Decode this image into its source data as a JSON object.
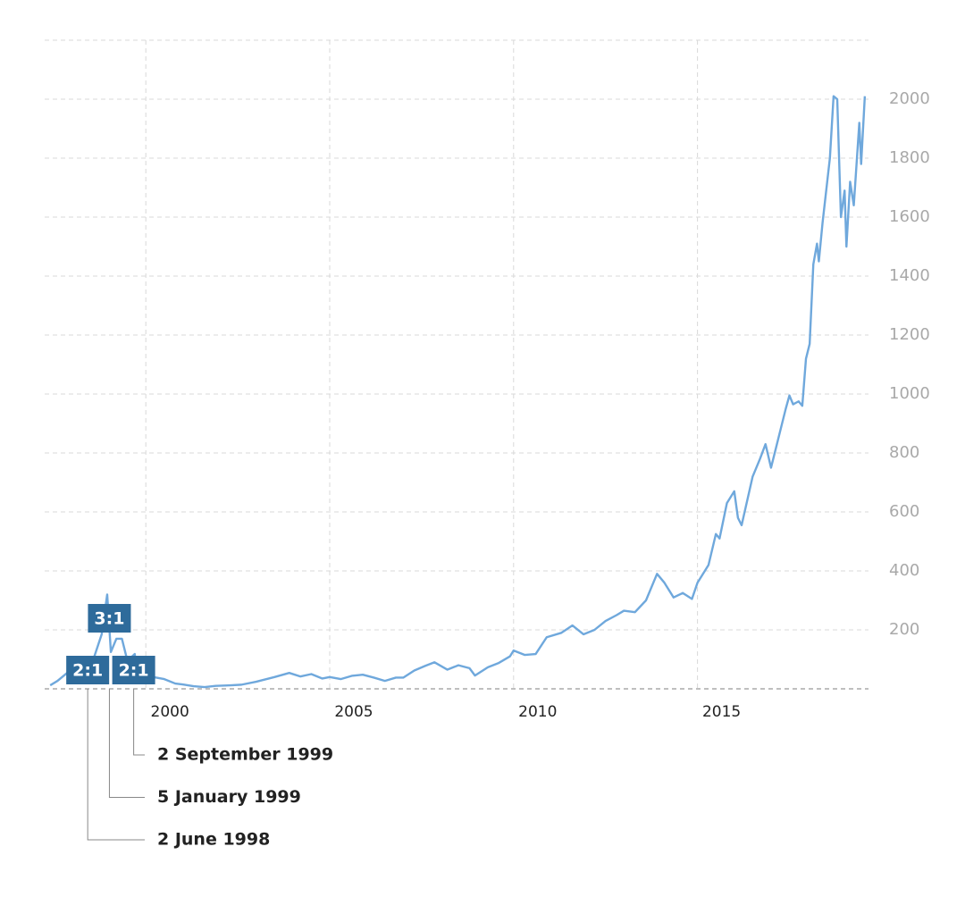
{
  "chart_data": {
    "type": "line",
    "x": [
      1997.4,
      1997.6,
      1997.9,
      1998.2,
      1998.4,
      1998.6,
      1998.8,
      1998.95,
      1999.05,
      1999.2,
      1999.35,
      1999.5,
      1999.7,
      1999.75,
      1999.95,
      2000.2,
      2000.5,
      2000.8,
      2001.0,
      2001.3,
      2001.6,
      2001.9,
      2002.3,
      2002.6,
      2003.0,
      2003.5,
      2003.9,
      2004.2,
      2004.5,
      2004.8,
      2005.0,
      2005.3,
      2005.6,
      2005.9,
      2006.2,
      2006.5,
      2006.8,
      2007.0,
      2007.3,
      2007.6,
      2007.85,
      2008.2,
      2008.5,
      2008.8,
      2008.95,
      2009.3,
      2009.6,
      2009.9,
      2010.0,
      2010.3,
      2010.6,
      2010.9,
      2011.3,
      2011.6,
      2011.9,
      2012.2,
      2012.5,
      2012.8,
      2013.0,
      2013.3,
      2013.6,
      2013.9,
      2014.1,
      2014.35,
      2014.6,
      2014.85,
      2015.0,
      2015.3,
      2015.5,
      2015.6,
      2015.8,
      2016.0,
      2016.1,
      2016.2,
      2016.5,
      2016.7,
      2016.85,
      2017.0,
      2017.2,
      2017.4,
      2017.5,
      2017.6,
      2017.75,
      2017.85,
      2017.95,
      2018.05,
      2018.15,
      2018.25,
      2018.3,
      2018.4,
      2018.6,
      2018.7,
      2018.8,
      2018.9,
      2019.0,
      2019.05,
      2019.15,
      2019.25,
      2019.4,
      2019.45,
      2019.55
    ],
    "values": [
      12,
      27,
      58,
      42,
      27,
      110,
      185,
      320,
      125,
      170,
      170,
      95,
      118,
      40,
      58,
      40,
      33,
      18,
      15,
      9,
      6,
      10,
      12,
      14,
      24,
      40,
      54,
      42,
      50,
      35,
      40,
      33,
      44,
      48,
      38,
      27,
      38,
      38,
      62,
      78,
      90,
      65,
      80,
      70,
      45,
      73,
      88,
      110,
      130,
      115,
      118,
      175,
      190,
      215,
      185,
      200,
      230,
      250,
      265,
      260,
      300,
      390,
      360,
      310,
      325,
      305,
      360,
      420,
      525,
      510,
      630,
      670,
      580,
      555,
      720,
      780,
      830,
      750,
      850,
      950,
      995,
      965,
      975,
      960,
      1120,
      1170,
      1440,
      1510,
      1450,
      1580,
      1800,
      2010,
      2000,
      1600,
      1690,
      1500,
      1720,
      1640,
      1920,
      1780,
      2010
    ],
    "color": "#6fa8dc",
    "xlim": [
      1997.25,
      2019.65
    ],
    "xticks": [
      2000,
      2005,
      2010,
      2015
    ],
    "ylim": [
      0,
      2200
    ],
    "yticks": [
      200,
      400,
      600,
      800,
      1000,
      1200,
      1400,
      1600,
      1800,
      2000
    ],
    "grid": true,
    "annotations": [
      {
        "label": "2:1",
        "date": "2 June 1998",
        "x": 1998.42
      },
      {
        "label": "3:1",
        "date": "5 January 1999",
        "x": 1999.01
      },
      {
        "label": "2:1",
        "date": "2 September 1999",
        "x": 1999.67
      }
    ],
    "annotation_color": "#2e6b9b"
  }
}
